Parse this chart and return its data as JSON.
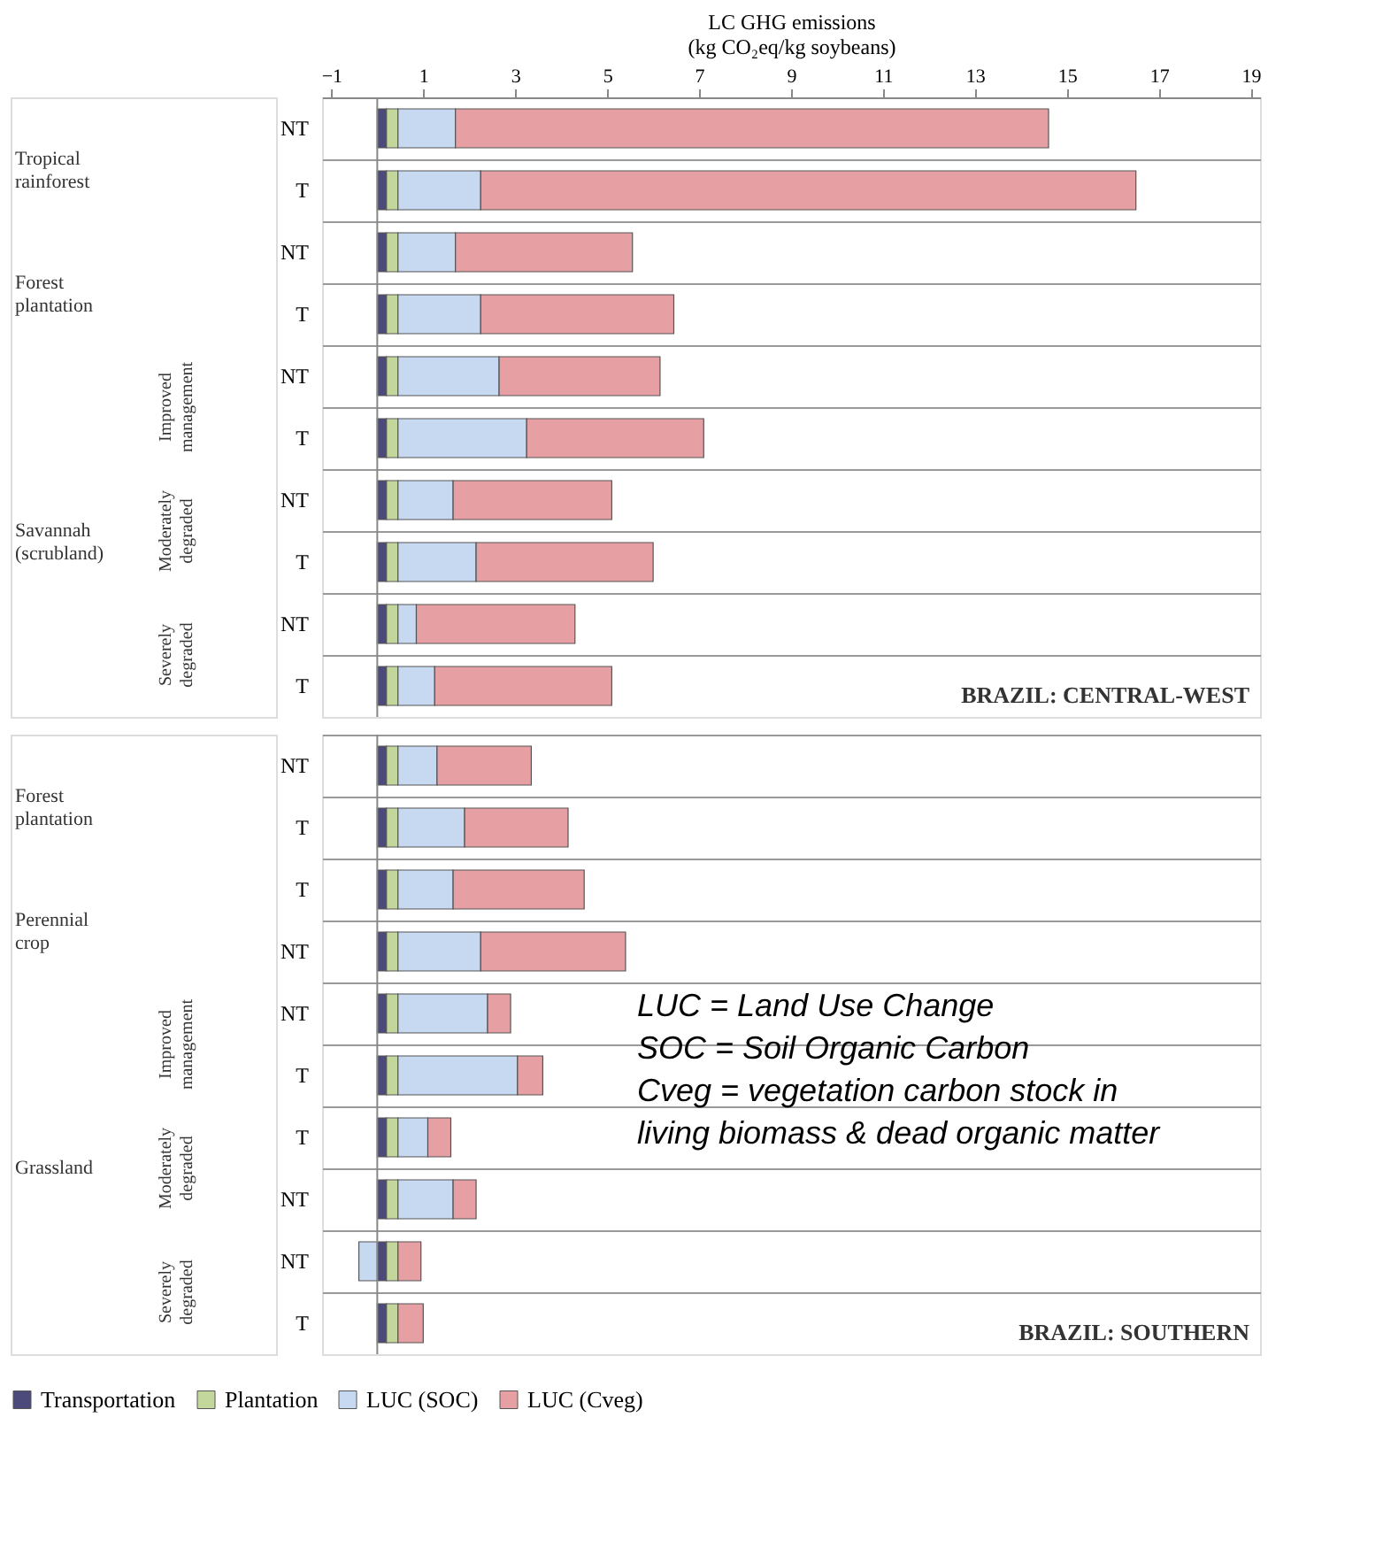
{
  "chart_data": [
    {
      "type": "bar",
      "orientation": "horizontal",
      "stacked": true,
      "xlabel": "LC GHG emissions\n(kg CO₂eq/kg soybeans)",
      "categories": [
        "NT",
        "T",
        "NT",
        "T",
        "NT",
        "T",
        "NT",
        "T",
        "NT",
        "T"
      ],
      "series": [
        {
          "name": "Transportation",
          "color": "#4b4a7a",
          "values": [
            0.2,
            0.2,
            0.2,
            0.2,
            0.2,
            0.2,
            0.2,
            0.2,
            0.2,
            0.2
          ]
        },
        {
          "name": "Plantation",
          "color": "#c3d69b",
          "values": [
            0.25,
            0.25,
            0.25,
            0.25,
            0.25,
            0.25,
            0.25,
            0.25,
            0.25,
            0.25
          ]
        },
        {
          "name": "LUC (SOC)",
          "color": "#c6d9f0",
          "values": [
            1.25,
            1.8,
            1.25,
            1.8,
            2.2,
            2.8,
            1.2,
            1.7,
            0.4,
            0.8
          ]
        },
        {
          "name": "LUC (Cveg)",
          "color": "#e6a0a4",
          "values": [
            12.9,
            14.25,
            3.85,
            4.2,
            3.5,
            3.85,
            3.45,
            3.85,
            3.45,
            3.85
          ]
        }
      ],
      "xlim": [
        -1.2,
        19.2
      ],
      "xticks": [
        -1,
        1,
        3,
        5,
        7,
        9,
        11,
        13,
        15,
        17,
        19
      ],
      "grid": "y",
      "legend": "bottom",
      "ref_lines": [
        {
          "axis": "x",
          "value": 0,
          "color": "#888888"
        }
      ],
      "annotations": [
        "Tropical rainforest",
        "Forest plantation",
        "Savannah (scrubland)",
        "Improved management",
        "Moderately degraded",
        "Severely degraded",
        "BRAZIL: CENTRAL-WEST"
      ]
    },
    {
      "type": "bar",
      "orientation": "horizontal",
      "stacked": true,
      "tick_labels": "y",
      "categories": [
        "NT",
        "T",
        "T",
        "NT",
        "NT",
        "T",
        "T",
        "NT",
        "NT",
        "T"
      ],
      "series": [
        {
          "name": "Transportation",
          "color": "#4b4a7a",
          "values": [
            0.2,
            0.2,
            0.2,
            0.2,
            0.2,
            0.2,
            0.2,
            0.2,
            0.2,
            0.2
          ]
        },
        {
          "name": "Plantation",
          "color": "#c3d69b",
          "values": [
            0.25,
            0.25,
            0.25,
            0.25,
            0.25,
            0.25,
            0.25,
            0.25,
            0.25,
            0.25
          ]
        },
        {
          "name": "LUC (SOC)",
          "color": "#c6d9f0",
          "values": [
            0.85,
            1.45,
            1.2,
            1.8,
            1.95,
            2.6,
            0.65,
            1.2,
            -0.4,
            0
          ]
        },
        {
          "name": "LUC (Cveg)",
          "color": "#e6a0a4",
          "values": [
            2.05,
            2.25,
            2.85,
            3.15,
            0.5,
            0.55,
            0.5,
            0.5,
            0.5,
            0.55
          ]
        }
      ],
      "xlim": [
        -1.2,
        19.2
      ],
      "xticks": [
        -1,
        1,
        3,
        5,
        7,
        9,
        11,
        13,
        15,
        17,
        19
      ],
      "grid": "y",
      "legend": "bottom",
      "ref_lines": [
        {
          "axis": "x",
          "value": 0,
          "color": "#888888"
        }
      ],
      "annotations": [
        "Forest plantation",
        "Perennial crop",
        "Grassland",
        "Improved management",
        "Moderately degraded",
        "Severely degraded",
        "BRAZIL: SOUTHERN",
        "LUC  = Land Use Change",
        "SOC  = Soil Organic Carbon",
        "Cveg =  vegetation carbon stock in",
        "living biomass  & dead organic matter"
      ]
    }
  ]
}
